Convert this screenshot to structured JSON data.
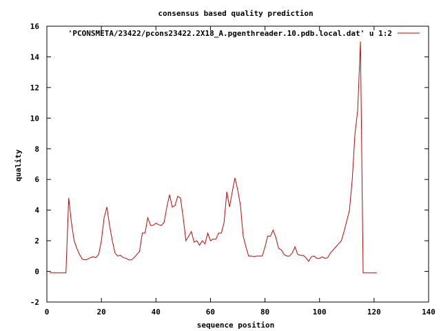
{
  "chart_data": {
    "type": "line",
    "title": "consensus based quality prediction",
    "xlabel": "sequence position",
    "ylabel": "quality",
    "xlim": [
      0,
      140
    ],
    "ylim": [
      -2,
      16
    ],
    "x_ticks": [
      "0",
      "20",
      "40",
      "60",
      "80",
      "100",
      "120",
      "140"
    ],
    "y_ticks": [
      "-2",
      "0",
      "2",
      "4",
      "6",
      "8",
      "10",
      "12",
      "14",
      "16"
    ],
    "grid": false,
    "legend_position": "top-right",
    "series": [
      {
        "name": "'PCONSMETA/23422/pcons23422.2X18_A.pgenthreader.10.pdb.local.dat' u 1:2",
        "color": "#cc0000",
        "x": [
          1,
          2,
          3,
          4,
          5,
          6,
          7,
          8,
          9,
          10,
          11,
          12,
          13,
          14,
          15,
          16,
          17,
          18,
          19,
          20,
          21,
          22,
          23,
          24,
          25,
          26,
          27,
          28,
          29,
          30,
          31,
          32,
          33,
          34,
          35,
          36,
          37,
          38,
          39,
          40,
          41,
          42,
          43,
          44,
          45,
          46,
          47,
          48,
          49,
          50,
          51,
          52,
          53,
          54,
          55,
          56,
          57,
          58,
          59,
          60,
          61,
          62,
          63,
          64,
          65,
          66,
          67,
          68,
          69,
          70,
          71,
          72,
          73,
          74,
          75,
          76,
          77,
          78,
          79,
          80,
          81,
          82,
          83,
          84,
          85,
          86,
          87,
          88,
          89,
          90,
          91,
          92,
          93,
          94,
          95,
          96,
          97,
          98,
          99,
          100,
          101,
          102,
          103,
          104,
          105,
          106,
          107,
          108,
          109,
          110,
          111,
          112,
          113,
          114,
          115,
          116,
          117,
          118,
          119,
          120,
          121
        ],
        "y": [
          -0.1,
          -0.1,
          -0.1,
          -0.1,
          -0.1,
          -0.1,
          -0.1,
          4.8,
          3.2,
          2.0,
          1.5,
          1.1,
          0.8,
          0.75,
          0.8,
          0.9,
          0.95,
          0.9,
          1.1,
          2.0,
          3.5,
          4.2,
          3.0,
          2.0,
          1.2,
          1.0,
          1.05,
          0.9,
          0.85,
          0.75,
          0.75,
          0.9,
          1.1,
          1.3,
          2.5,
          2.5,
          3.5,
          3.0,
          3.0,
          3.15,
          3.05,
          3.0,
          3.2,
          4.2,
          5.0,
          4.2,
          4.3,
          4.9,
          4.8,
          3.5,
          2.0,
          2.3,
          2.6,
          1.9,
          2.0,
          1.7,
          2.0,
          1.8,
          2.5,
          2.0,
          2.1,
          2.1,
          2.5,
          2.5,
          3.2,
          5.2,
          4.2,
          5.2,
          6.1,
          5.3,
          4.3,
          2.3,
          1.6,
          1.0,
          1.0,
          0.95,
          1.0,
          1.0,
          1.0,
          1.6,
          2.3,
          2.3,
          2.7,
          2.2,
          1.5,
          1.4,
          1.1,
          1.0,
          1.0,
          1.2,
          1.6,
          1.1,
          1.05,
          1.05,
          0.9,
          0.65,
          0.95,
          1.0,
          0.85,
          0.85,
          0.95,
          0.85,
          0.9,
          1.2,
          1.4,
          1.6,
          1.8,
          2.0,
          2.6,
          3.3,
          4.0,
          6.0,
          9.0,
          10.5,
          15.0,
          -0.1,
          -0.1,
          -0.1,
          -0.1,
          -0.1,
          -0.1
        ]
      }
    ]
  }
}
